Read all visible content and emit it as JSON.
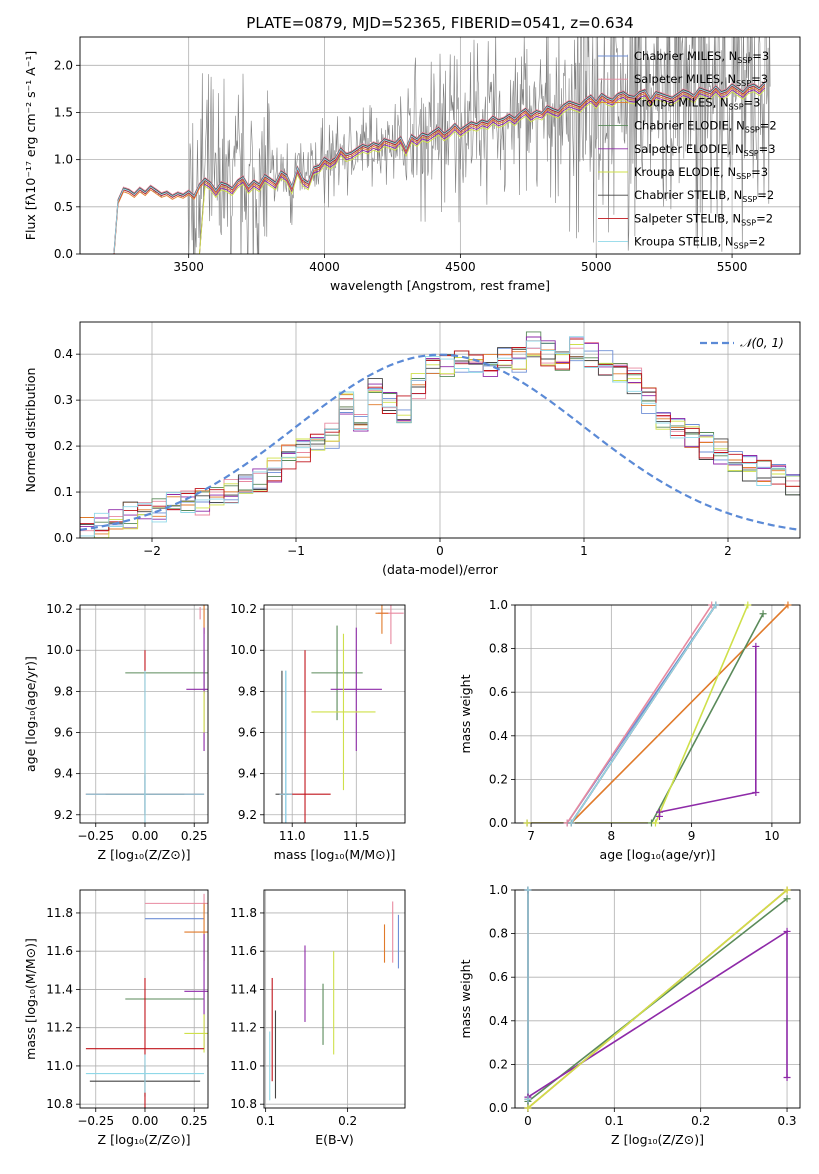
{
  "title": "PLATE=0879, MJD=52365, FIBERID=0541, z=0.634",
  "colors": {
    "chabrier_miles": "#6f8fd6",
    "salpeter_miles": "#e88aa0",
    "kroupa_miles": "#e07a2a",
    "chabrier_elodie": "#5a8a5a",
    "salpeter_elodie": "#8e2aa8",
    "kroupa_elodie": "#cfe04a",
    "chabrier_stelib": "#444444",
    "salpeter_stelib": "#c0141c",
    "kroupa_stelib": "#8fd8e8",
    "data": "#7f7f7f",
    "normal": "#5b8ad6"
  },
  "chart_data": [
    {
      "id": "spectrum",
      "type": "line",
      "title": "PLATE=0879, MJD=52365, FIBERID=0541, z=0.634",
      "xlabel": "wavelength [Angstrom, rest frame]",
      "ylabel": "Flux [fλ10⁻¹⁷ erg cm⁻² s⁻¹ A⁻¹]",
      "xlim": [
        3100,
        5750
      ],
      "ylim": [
        0,
        2.3
      ],
      "xticks": [
        3500,
        4000,
        4500,
        5000,
        5500
      ],
      "yticks": [
        0.0,
        0.5,
        1.0,
        1.5,
        2.0
      ],
      "legend_position": "top-right",
      "legend": [
        {
          "text": "Chabrier MILES, N",
          "sub": "SSP",
          "tail": "=3",
          "color": "chabrier_miles"
        },
        {
          "text": "Salpeter MILES, N",
          "sub": "SSP",
          "tail": "=3",
          "color": "salpeter_miles"
        },
        {
          "text": "Kroupa MILES, N",
          "sub": "SSP",
          "tail": "=3",
          "color": "kroupa_miles"
        },
        {
          "text": "Chabrier ELODIE, N",
          "sub": "SSP",
          "tail": "=2",
          "color": "chabrier_elodie"
        },
        {
          "text": "Salpeter ELODIE, N",
          "sub": "SSP",
          "tail": "=3",
          "color": "salpeter_elodie"
        },
        {
          "text": "Kroupa ELODIE, N",
          "sub": "SSP",
          "tail": "=3",
          "color": "kroupa_elodie"
        },
        {
          "text": "Chabrier STELIB, N",
          "sub": "SSP",
          "tail": "=2",
          "color": "chabrier_stelib"
        },
        {
          "text": "Salpeter STELIB, N",
          "sub": "SSP",
          "tail": "=2",
          "color": "salpeter_stelib"
        },
        {
          "text": "Kroupa STELIB, N",
          "sub": "SSP",
          "tail": "=2",
          "color": "kroupa_stelib"
        }
      ],
      "model_x": [
        3225,
        3240,
        3260,
        3280,
        3300,
        3320,
        3340,
        3360,
        3380,
        3400,
        3420,
        3440,
        3460,
        3480,
        3500,
        3520,
        3540,
        3560,
        3580,
        3600,
        3620,
        3640,
        3660,
        3680,
        3700,
        3720,
        3740,
        3760,
        3780,
        3800,
        3820,
        3840,
        3860,
        3880,
        3900,
        3920,
        3940,
        3960,
        3980,
        4000,
        4020,
        4040,
        4060,
        4080,
        4100,
        4120,
        4140,
        4160,
        4180,
        4200,
        4220,
        4240,
        4260,
        4280,
        4300,
        4320,
        4340,
        4360,
        4380,
        4400,
        4420,
        4440,
        4460,
        4480,
        4500,
        4520,
        4540,
        4560,
        4580,
        4600,
        4620,
        4640,
        4660,
        4680,
        4700,
        4720,
        4740,
        4760,
        4780,
        4800,
        4820,
        4840,
        4860,
        4880,
        4900,
        4920,
        4940,
        4960,
        4980,
        5000,
        5020,
        5040,
        5060,
        5080,
        5100,
        5120,
        5140,
        5160,
        5180,
        5200,
        5220,
        5240,
        5260,
        5280,
        5300,
        5320,
        5340,
        5360,
        5380,
        5400,
        5420,
        5440,
        5460,
        5480,
        5500,
        5520,
        5540,
        5560,
        5580,
        5600,
        5620
      ],
      "model_y": [
        0.0,
        0.55,
        0.68,
        0.66,
        0.62,
        0.68,
        0.64,
        0.7,
        0.66,
        0.62,
        0.64,
        0.6,
        0.63,
        0.61,
        0.65,
        0.6,
        0.72,
        0.78,
        0.74,
        0.66,
        0.74,
        0.72,
        0.68,
        0.76,
        0.8,
        0.7,
        0.76,
        0.72,
        0.82,
        0.78,
        0.74,
        0.86,
        0.82,
        0.7,
        0.9,
        0.78,
        0.74,
        0.9,
        0.92,
        1.0,
        0.96,
        1.0,
        1.1,
        1.04,
        1.06,
        1.1,
        1.14,
        1.12,
        1.16,
        1.14,
        1.2,
        1.18,
        1.16,
        1.22,
        1.1,
        1.24,
        1.2,
        1.26,
        1.24,
        1.28,
        1.32,
        1.26,
        1.3,
        1.36,
        1.3,
        1.34,
        1.38,
        1.36,
        1.4,
        1.38,
        1.44,
        1.4,
        1.42,
        1.46,
        1.42,
        1.48,
        1.52,
        1.46,
        1.5,
        1.48,
        1.55,
        1.52,
        1.5,
        1.56,
        1.6,
        1.58,
        1.56,
        1.62,
        1.66,
        1.6,
        1.68,
        1.64,
        1.62,
        1.68,
        1.7,
        1.66,
        1.65,
        1.7,
        1.72,
        1.62,
        1.7,
        1.68,
        1.66,
        1.64,
        1.68,
        1.72,
        1.7,
        1.66,
        1.74,
        1.72,
        1.7,
        1.76,
        1.7,
        1.72,
        1.78,
        1.74,
        1.7,
        1.76,
        1.78,
        1.74,
        1.8
      ]
    },
    {
      "id": "residuals",
      "type": "bar",
      "xlabel": "(data-model)/error",
      "ylabel": "Normed distribution",
      "xlim": [
        -2.5,
        2.5
      ],
      "ylim": [
        0,
        0.47
      ],
      "xticks": [
        -2,
        -1,
        0,
        1,
        2
      ],
      "xticklabels": [
        "−2",
        "−1",
        "0",
        "1",
        "2"
      ],
      "yticks": [
        0.0,
        0.1,
        0.2,
        0.3,
        0.4
      ],
      "legend_position": "top-right",
      "legend": [
        {
          "text": "𝒩(0, 1)",
          "color": "normal"
        }
      ],
      "bin_edges_start": -2.5,
      "bin_width": 0.1,
      "values": [
        0.02,
        0.03,
        0.04,
        0.05,
        0.05,
        0.06,
        0.07,
        0.08,
        0.08,
        0.09,
        0.1,
        0.12,
        0.13,
        0.15,
        0.18,
        0.19,
        0.2,
        0.22,
        0.29,
        0.25,
        0.32,
        0.3,
        0.28,
        0.33,
        0.37,
        0.38,
        0.39,
        0.38,
        0.37,
        0.4,
        0.39,
        0.42,
        0.4,
        0.38,
        0.41,
        0.4,
        0.38,
        0.35,
        0.34,
        0.3,
        0.26,
        0.24,
        0.22,
        0.2,
        0.19,
        0.17,
        0.15,
        0.14,
        0.13,
        0.12
      ]
    },
    {
      "id": "age_vs_Z",
      "type": "scatter",
      "xlabel": "Z [log₁₀(Z/Z⊙)]",
      "ylabel": "age  [log₁₀(age/yr)]",
      "xlim": [
        -0.33,
        0.32
      ],
      "ylim": [
        9.16,
        10.22
      ],
      "xticks": [
        -0.25,
        0.0,
        0.25
      ],
      "xticklabels": [
        "−0.25",
        "0.00",
        "0.25"
      ],
      "yticks": [
        9.2,
        9.4,
        9.6,
        9.8,
        10.0,
        10.2
      ],
      "points": [
        {
          "x": 0.0,
          "y": 9.3,
          "xerr": 0.3,
          "yerr": 0.09,
          "color": "chabrier_miles"
        },
        {
          "x": 0.28,
          "y": 10.18,
          "xerr": 0.0,
          "yerr": 0.03,
          "color": "salpeter_miles"
        },
        {
          "x": 0.3,
          "y": 10.18,
          "xerr": 0.0,
          "yerr": 0.1,
          "color": "kroupa_miles"
        },
        {
          "x": 0.3,
          "y": 9.89,
          "xerr": 0.4,
          "yerr": 0.1,
          "color": "chabrier_elodie"
        },
        {
          "x": 0.3,
          "y": 9.81,
          "xerr": 0.09,
          "yerr": 0.3,
          "color": "salpeter_elodie"
        },
        {
          "x": 0.3,
          "y": 9.7,
          "xerr": 0.0,
          "yerr": 0.1,
          "color": "kroupa_elodie"
        },
        {
          "x": 0.0,
          "y": 9.3,
          "xerr": 0.2,
          "yerr": 0.1,
          "color": "chabrier_stelib"
        },
        {
          "x": 0.0,
          "y": 9.3,
          "xerr": 0.3,
          "yerr": 0.7,
          "color": "salpeter_stelib"
        },
        {
          "x": 0.0,
          "y": 9.3,
          "xerr": 0.3,
          "yerr": 0.6,
          "color": "kroupa_stelib"
        }
      ]
    },
    {
      "id": "age_vs_mass",
      "type": "scatter",
      "xlabel": "mass [log₁₀(M/M⊙)]",
      "ylabel": "",
      "xlim": [
        10.78,
        11.88
      ],
      "ylim": [
        9.16,
        10.22
      ],
      "xticks": [
        11.0,
        11.5
      ],
      "xticklabels": [
        "11.0",
        "11.5"
      ],
      "yticks": [
        9.2,
        9.4,
        9.6,
        9.8,
        10.0,
        10.2
      ],
      "points": [
        {
          "x": 10.95,
          "y": 9.3,
          "xerr": 0.05,
          "yerr": 0.6,
          "color": "chabrier_miles"
        },
        {
          "x": 11.77,
          "y": 10.18,
          "xerr": 0.1,
          "yerr": 0.15,
          "color": "salpeter_miles"
        },
        {
          "x": 11.7,
          "y": 10.18,
          "xerr": 0.05,
          "yerr": 0.1,
          "color": "kroupa_miles"
        },
        {
          "x": 11.35,
          "y": 9.89,
          "xerr": 0.2,
          "yerr": 0.23,
          "color": "chabrier_elodie"
        },
        {
          "x": 11.5,
          "y": 9.81,
          "xerr": 0.2,
          "yerr": 0.3,
          "color": "salpeter_elodie"
        },
        {
          "x": 11.4,
          "y": 9.7,
          "xerr": 0.25,
          "yerr": 0.38,
          "color": "kroupa_elodie"
        },
        {
          "x": 10.92,
          "y": 9.3,
          "xerr": 0.05,
          "yerr": 0.6,
          "color": "chabrier_stelib"
        },
        {
          "x": 11.1,
          "y": 9.3,
          "xerr": 0.2,
          "yerr": 0.7,
          "color": "salpeter_stelib"
        },
        {
          "x": 10.95,
          "y": 9.3,
          "xerr": 0.05,
          "yerr": 0.6,
          "color": "kroupa_stelib"
        }
      ]
    },
    {
      "id": "weight_vs_age",
      "type": "line",
      "xlabel": "age  [log₁₀(age/yr)]",
      "ylabel": "mass weight",
      "xlim": [
        6.8,
        10.35
      ],
      "ylim": [
        0,
        1.0
      ],
      "xticks": [
        7,
        8,
        9,
        10
      ],
      "yticks": [
        0.0,
        0.2,
        0.4,
        0.6,
        0.8,
        1.0
      ],
      "series": [
        {
          "color": "chabrier_miles",
          "x": [
            6.95,
            7.45,
            9.3
          ],
          "y": [
            0.0,
            0.0,
            1.0
          ]
        },
        {
          "color": "salpeter_miles",
          "x": [
            6.95,
            7.45,
            9.25
          ],
          "y": [
            0.0,
            0.0,
            1.0
          ]
        },
        {
          "color": "kroupa_miles",
          "x": [
            7.5,
            10.2
          ],
          "y": [
            0.0,
            1.0
          ]
        },
        {
          "color": "chabrier_elodie",
          "x": [
            8.5,
            9.89
          ],
          "y": [
            0.0,
            0.96
          ]
        },
        {
          "color": "salpeter_elodie",
          "x": [
            8.6,
            8.6,
            9.8,
            9.8
          ],
          "y": [
            0.03,
            0.05,
            0.14,
            0.81
          ]
        },
        {
          "color": "kroupa_elodie",
          "x": [
            6.95,
            8.55,
            9.7
          ],
          "y": [
            0.0,
            0.0,
            1.0
          ]
        },
        {
          "color": "chabrier_stelib",
          "x": [
            7.5,
            9.3
          ],
          "y": [
            0.0,
            1.0
          ]
        },
        {
          "color": "salpeter_stelib",
          "x": [
            7.5,
            9.3
          ],
          "y": [
            0.0,
            1.0
          ]
        },
        {
          "color": "kroupa_stelib",
          "x": [
            7.5,
            9.3
          ],
          "y": [
            0.0,
            1.0
          ]
        }
      ]
    },
    {
      "id": "mass_vs_Z",
      "type": "scatter",
      "xlabel": "Z [log₁₀(Z/Z⊙)]",
      "ylabel": "mass [log₁₀(M/M⊙)]",
      "xlim": [
        -0.33,
        0.32
      ],
      "ylim": [
        10.78,
        11.92
      ],
      "xticks": [
        -0.25,
        0.0,
        0.25
      ],
      "xticklabels": [
        "−0.25",
        "0.00",
        "0.25"
      ],
      "yticks": [
        10.8,
        11.0,
        11.2,
        11.4,
        11.6,
        11.8
      ],
      "points": [
        {
          "x": 0.15,
          "y": 11.77,
          "xerr": 0.15,
          "yerr": 0.0,
          "color": "chabrier_miles"
        },
        {
          "x": 0.3,
          "y": 11.85,
          "xerr": 0.3,
          "yerr": 0.05,
          "color": "salpeter_miles"
        },
        {
          "x": 0.3,
          "y": 11.7,
          "xerr": 0.1,
          "yerr": 0.15,
          "color": "kroupa_miles"
        },
        {
          "x": 0.1,
          "y": 11.35,
          "xerr": 0.2,
          "yerr": 0.0,
          "color": "chabrier_elodie"
        },
        {
          "x": 0.3,
          "y": 11.39,
          "xerr": 0.1,
          "yerr": 0.3,
          "color": "salpeter_elodie"
        },
        {
          "x": 0.3,
          "y": 11.17,
          "xerr": 0.1,
          "yerr": 0.1,
          "color": "kroupa_elodie"
        },
        {
          "x": 0.0,
          "y": 10.92,
          "xerr": 0.28,
          "yerr": 0.08,
          "color": "chabrier_stelib"
        },
        {
          "x": 0.0,
          "y": 11.09,
          "xerr": 0.3,
          "yerr": 0.37,
          "color": "salpeter_stelib"
        },
        {
          "x": 0.0,
          "y": 10.96,
          "xerr": 0.3,
          "yerr": 0.1,
          "color": "kroupa_stelib"
        }
      ]
    },
    {
      "id": "mass_vs_ebv",
      "type": "scatter",
      "xlabel": "E(B-V)",
      "ylabel": "",
      "xlim": [
        0.098,
        0.27
      ],
      "ylim": [
        10.78,
        11.92
      ],
      "xticks": [
        0.1,
        0.2
      ],
      "xticklabels": [
        "0.1",
        "0.2"
      ],
      "yticks": [
        10.8,
        11.0,
        11.2,
        11.4,
        11.6,
        11.8
      ],
      "points": [
        {
          "x": 0.262,
          "y": 11.65,
          "xerr": 0.0,
          "yerr": 0.14,
          "color": "chabrier_miles"
        },
        {
          "x": 0.255,
          "y": 11.7,
          "xerr": 0.0,
          "yerr": 0.16,
          "color": "salpeter_miles"
        },
        {
          "x": 0.245,
          "y": 11.64,
          "xerr": 0.0,
          "yerr": 0.1,
          "color": "kroupa_miles"
        },
        {
          "x": 0.17,
          "y": 11.27,
          "xerr": 0.0,
          "yerr": 0.16,
          "color": "chabrier_elodie"
        },
        {
          "x": 0.148,
          "y": 11.43,
          "xerr": 0.0,
          "yerr": 0.2,
          "color": "salpeter_elodie"
        },
        {
          "x": 0.183,
          "y": 11.33,
          "xerr": 0.0,
          "yerr": 0.27,
          "color": "kroupa_elodie"
        },
        {
          "x": 0.112,
          "y": 11.06,
          "xerr": 0.0,
          "yerr": 0.23,
          "color": "chabrier_stelib"
        },
        {
          "x": 0.108,
          "y": 11.19,
          "xerr": 0.0,
          "yerr": 0.27,
          "color": "salpeter_stelib"
        },
        {
          "x": 0.105,
          "y": 11.0,
          "xerr": 0.0,
          "yerr": 0.18,
          "color": "kroupa_stelib"
        }
      ]
    },
    {
      "id": "weight_vs_Z",
      "type": "line",
      "xlabel": "Z [log₁₀(Z/Z⊙)]",
      "ylabel": "mass weight",
      "xlim": [
        -0.015,
        0.315
      ],
      "ylim": [
        0,
        1.0
      ],
      "xticks": [
        0.0,
        0.1,
        0.2,
        0.3
      ],
      "yticks": [
        0.0,
        0.2,
        0.4,
        0.6,
        0.8,
        1.0
      ],
      "series": [
        {
          "color": "chabrier_miles",
          "x": [
            0.0,
            0.0
          ],
          "y": [
            0.0,
            1.0
          ]
        },
        {
          "color": "salpeter_miles",
          "x": [
            0.0,
            0.3
          ],
          "y": [
            0.0,
            1.0
          ]
        },
        {
          "color": "kroupa_miles",
          "x": [
            0.0,
            0.3
          ],
          "y": [
            0.0,
            1.0
          ]
        },
        {
          "color": "chabrier_elodie",
          "x": [
            0.0,
            0.3
          ],
          "y": [
            0.03,
            0.96
          ]
        },
        {
          "color": "salpeter_elodie",
          "x": [
            0.0,
            0.3,
            0.3
          ],
          "y": [
            0.05,
            0.81,
            0.14
          ]
        },
        {
          "color": "kroupa_elodie",
          "x": [
            0.0,
            0.3
          ],
          "y": [
            0.0,
            1.0
          ]
        },
        {
          "color": "chabrier_stelib",
          "x": [
            0.0,
            0.0
          ],
          "y": [
            0.04,
            1.0
          ]
        },
        {
          "color": "salpeter_stelib",
          "x": [
            0.0,
            0.0
          ],
          "y": [
            0.04,
            1.0
          ]
        },
        {
          "color": "kroupa_stelib",
          "x": [
            0.0,
            0.0
          ],
          "y": [
            0.04,
            1.0
          ]
        }
      ]
    }
  ]
}
